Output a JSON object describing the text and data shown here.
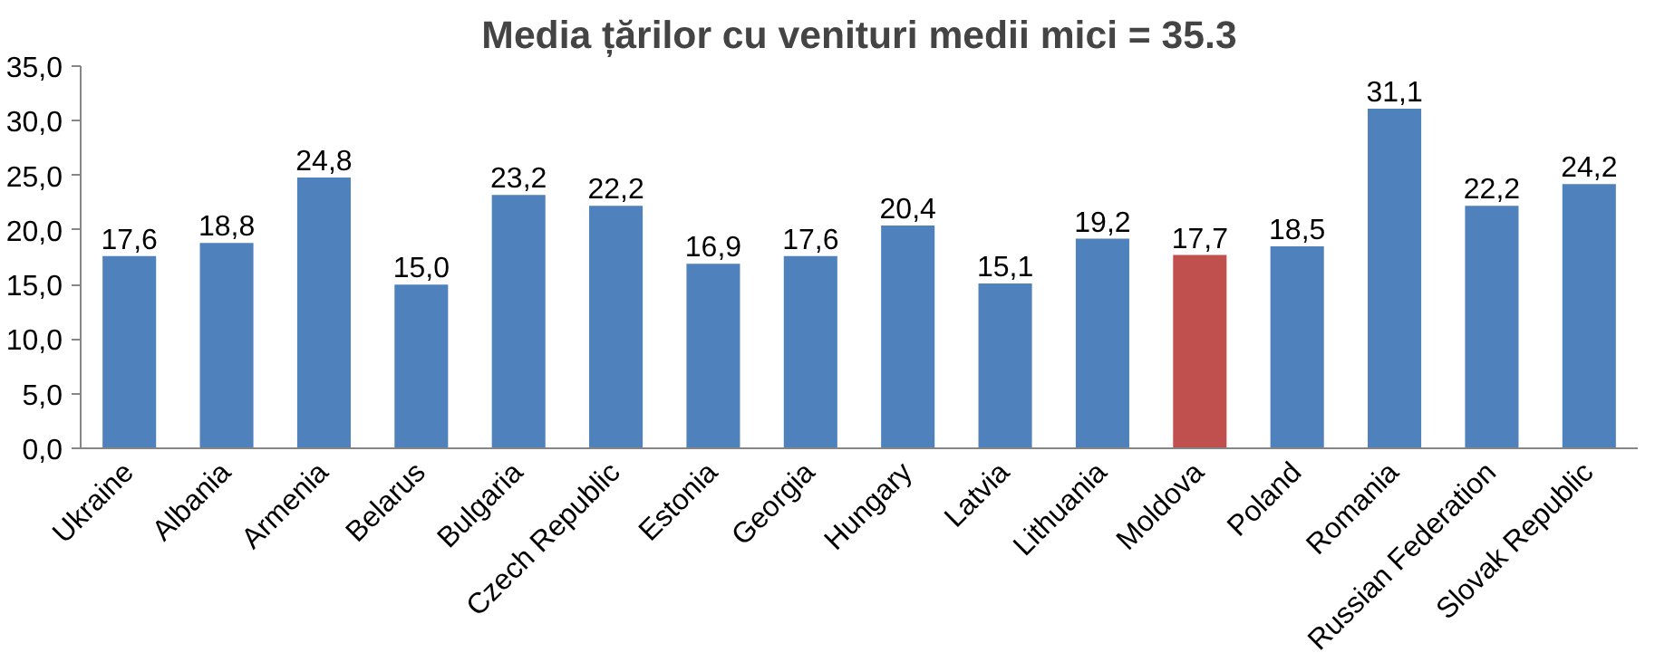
{
  "chart_data": {
    "type": "bar",
    "title": "Media țărilor cu venituri medii mici = 35.3",
    "categories": [
      "Ukraine",
      "Albania",
      "Armenia",
      "Belarus",
      "Bulgaria",
      "Czech Republic",
      "Estonia",
      "Georgia",
      "Hungary",
      "Latvia",
      "Lithuania",
      "Moldova",
      "Poland",
      "Romania",
      "Russian Federation",
      "Slovak Republic"
    ],
    "values": [
      17.6,
      18.8,
      24.8,
      15.0,
      23.2,
      22.2,
      16.9,
      17.6,
      20.4,
      15.1,
      19.2,
      17.7,
      18.5,
      31.1,
      22.2,
      24.2
    ],
    "value_labels": [
      "17,6",
      "18,8",
      "24,8",
      "15,0",
      "23,2",
      "22,2",
      "16,9",
      "17,6",
      "20,4",
      "15,1",
      "19,2",
      "17,7",
      "18,5",
      "31,1",
      "22,2",
      "24,2"
    ],
    "colors": [
      "#4f81bd",
      "#4f81bd",
      "#4f81bd",
      "#4f81bd",
      "#4f81bd",
      "#4f81bd",
      "#4f81bd",
      "#4f81bd",
      "#4f81bd",
      "#4f81bd",
      "#4f81bd",
      "#c0504d",
      "#4f81bd",
      "#4f81bd",
      "#4f81bd",
      "#4f81bd"
    ],
    "ylim": [
      0,
      35
    ],
    "yticks": [
      {
        "value": 0,
        "label": "0,0"
      },
      {
        "value": 5,
        "label": "5,0"
      },
      {
        "value": 10,
        "label": "10,0"
      },
      {
        "value": 15,
        "label": "15,0"
      },
      {
        "value": 20,
        "label": "20,0"
      },
      {
        "value": 25,
        "label": "25,0"
      },
      {
        "value": 30,
        "label": "30,0"
      },
      {
        "value": 35,
        "label": "35,0"
      }
    ]
  }
}
